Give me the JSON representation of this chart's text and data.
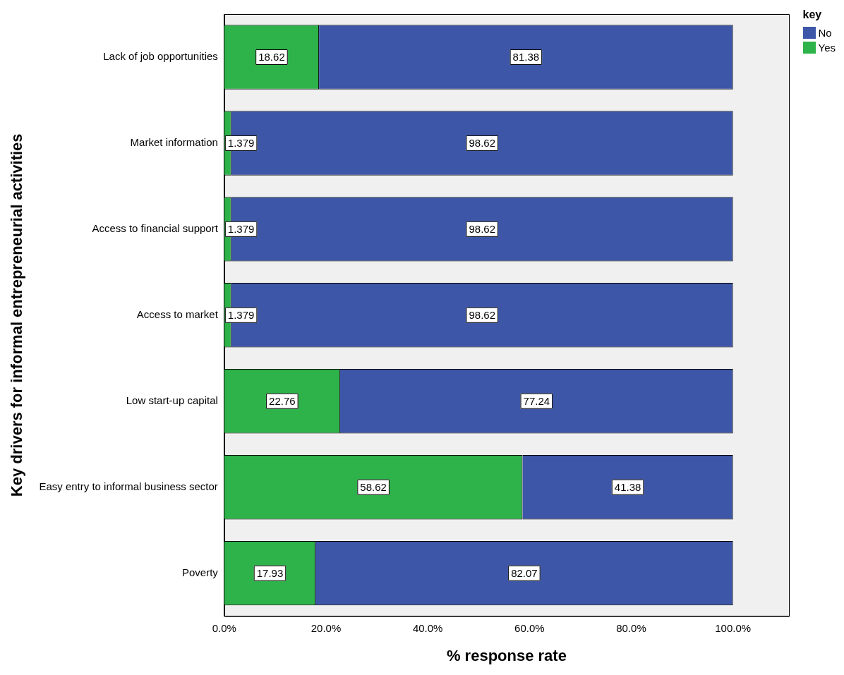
{
  "chart_data": {
    "type": "bar",
    "orientation": "horizontal",
    "stacked": true,
    "xlabel": "% response rate",
    "ylabel": "Key drivers for informal entrepreneurial activities",
    "legend_title": "key",
    "legend": "top right",
    "data_labels": true,
    "grid": false,
    "categories": [
      "Lack of job opportunities",
      "Market information",
      "Access to financial support",
      "Access to market",
      "Low start-up capital",
      "Easy entry to informal business sector",
      "Poverty"
    ],
    "series": [
      {
        "name": "Yes",
        "color": "#2db34a",
        "values": [
          18.62,
          1.379,
          1.379,
          1.379,
          22.76,
          58.62,
          17.93
        ]
      },
      {
        "name": "No",
        "color": "#3d56a8",
        "values": [
          81.38,
          98.62,
          98.62,
          98.62,
          77.24,
          41.38,
          82.07
        ]
      }
    ],
    "xlim": [
      0,
      111
    ],
    "xticks": [
      {
        "value": 0,
        "label": "0.0%"
      },
      {
        "value": 20,
        "label": "20.0%"
      },
      {
        "value": 40,
        "label": "40.0%"
      },
      {
        "value": 60,
        "label": "60.0%"
      },
      {
        "value": 80,
        "label": "80.0%"
      },
      {
        "value": 100,
        "label": "100.0%"
      }
    ]
  }
}
